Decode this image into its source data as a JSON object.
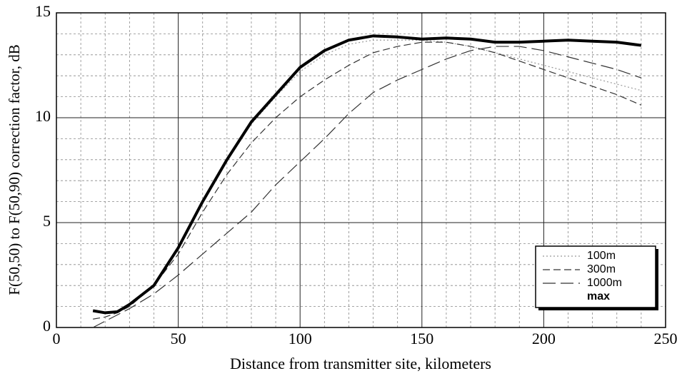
{
  "chart_data": {
    "type": "line",
    "xlabel": "Distance from transmitter site, kilometers",
    "ylabel": "F(50,50) to F(50,90) correction factor, dB",
    "x": [
      15,
      20,
      25,
      30,
      40,
      50,
      60,
      70,
      80,
      90,
      100,
      110,
      120,
      130,
      140,
      150,
      160,
      170,
      180,
      190,
      200,
      210,
      220,
      230,
      240
    ],
    "series": [
      {
        "name": "100m",
        "color": "#999999",
        "dash": "2,3",
        "width": 1.2,
        "values": [
          0.8,
          0.7,
          0.75,
          1.1,
          2.0,
          3.8,
          6.0,
          8.0,
          9.7,
          11.0,
          12.2,
          13.0,
          13.5,
          13.7,
          13.7,
          13.7,
          13.6,
          13.4,
          13.1,
          12.8,
          12.5,
          12.2,
          11.9,
          11.6,
          11.3
        ]
      },
      {
        "name": "300m",
        "color": "#333333",
        "dash": "10,5",
        "width": 1.2,
        "values": [
          0.4,
          0.5,
          0.7,
          1.0,
          2.0,
          3.5,
          5.5,
          7.3,
          8.8,
          10.0,
          11.0,
          11.8,
          12.5,
          13.1,
          13.4,
          13.6,
          13.6,
          13.4,
          13.1,
          12.7,
          12.3,
          11.9,
          11.5,
          11.1,
          10.6
        ]
      },
      {
        "name": "1000m",
        "color": "#333333",
        "dash": "18,7",
        "width": 1.2,
        "values": [
          0.0,
          0.3,
          0.6,
          0.9,
          1.6,
          2.5,
          3.5,
          4.5,
          5.5,
          6.8,
          7.9,
          9.0,
          10.2,
          11.2,
          11.8,
          12.3,
          12.8,
          13.2,
          13.4,
          13.4,
          13.2,
          12.9,
          12.6,
          12.3,
          11.9
        ]
      },
      {
        "name": "max",
        "color": "#000000",
        "dash": "",
        "width": 4,
        "values": [
          0.8,
          0.7,
          0.75,
          1.1,
          2.0,
          3.8,
          6.0,
          8.0,
          9.8,
          11.1,
          12.4,
          13.2,
          13.7,
          13.9,
          13.85,
          13.75,
          13.8,
          13.75,
          13.6,
          13.6,
          13.65,
          13.7,
          13.65,
          13.6,
          13.45
        ]
      }
    ],
    "xlim": [
      0,
      250
    ],
    "xticks": [
      0,
      50,
      100,
      150,
      200,
      250
    ],
    "ylim": [
      0,
      15
    ],
    "yticks": [
      0,
      5,
      10,
      15
    ],
    "x_minor_grid": [
      10,
      20,
      30,
      40,
      60,
      70,
      80,
      90,
      110,
      120,
      130,
      140,
      160,
      170,
      180,
      190,
      210,
      220,
      230,
      240
    ],
    "y_minor_grid": [
      1,
      2,
      3,
      4,
      6,
      7,
      8,
      9,
      11,
      12,
      13,
      14
    ],
    "grid": true,
    "legend": "lower right"
  }
}
